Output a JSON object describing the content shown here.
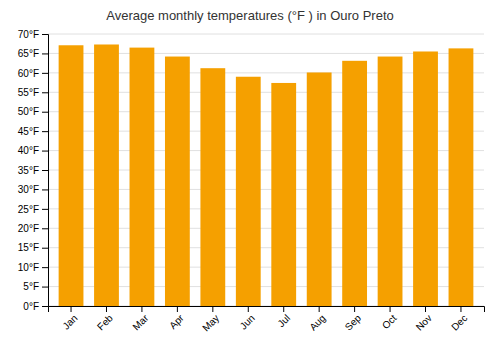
{
  "chart_data": {
    "type": "bar",
    "title": "Average monthly temperatures (°F ) in Ouro Preto",
    "categories": [
      "Jan",
      "Feb",
      "Mar",
      "Apr",
      "May",
      "Jun",
      "Jul",
      "Aug",
      "Sep",
      "Oct",
      "Nov",
      "Dec"
    ],
    "values": [
      67.1,
      67.3,
      66.5,
      64.2,
      61.2,
      59.0,
      57.4,
      60.1,
      63.1,
      64.2,
      65.5,
      66.3
    ],
    "color": "#F5A000",
    "ylim": [
      0,
      70
    ],
    "yticks": [
      {
        "value": 0,
        "label": "0°F"
      },
      {
        "value": 5,
        "label": "5°F"
      },
      {
        "value": 10,
        "label": "10°F"
      },
      {
        "value": 15,
        "label": "15°F"
      },
      {
        "value": 20,
        "label": "20°F"
      },
      {
        "value": 25,
        "label": "25°F"
      },
      {
        "value": 30,
        "label": "30°F"
      },
      {
        "value": 35,
        "label": "35°F"
      },
      {
        "value": 40,
        "label": "40°F"
      },
      {
        "value": 45,
        "label": "45°F"
      },
      {
        "value": 50,
        "label": "50°F"
      },
      {
        "value": 55,
        "label": "55°F"
      },
      {
        "value": 60,
        "label": "60°F"
      },
      {
        "value": 65,
        "label": "65°F"
      },
      {
        "value": 70,
        "label": "70°F"
      }
    ],
    "grid": true
  }
}
